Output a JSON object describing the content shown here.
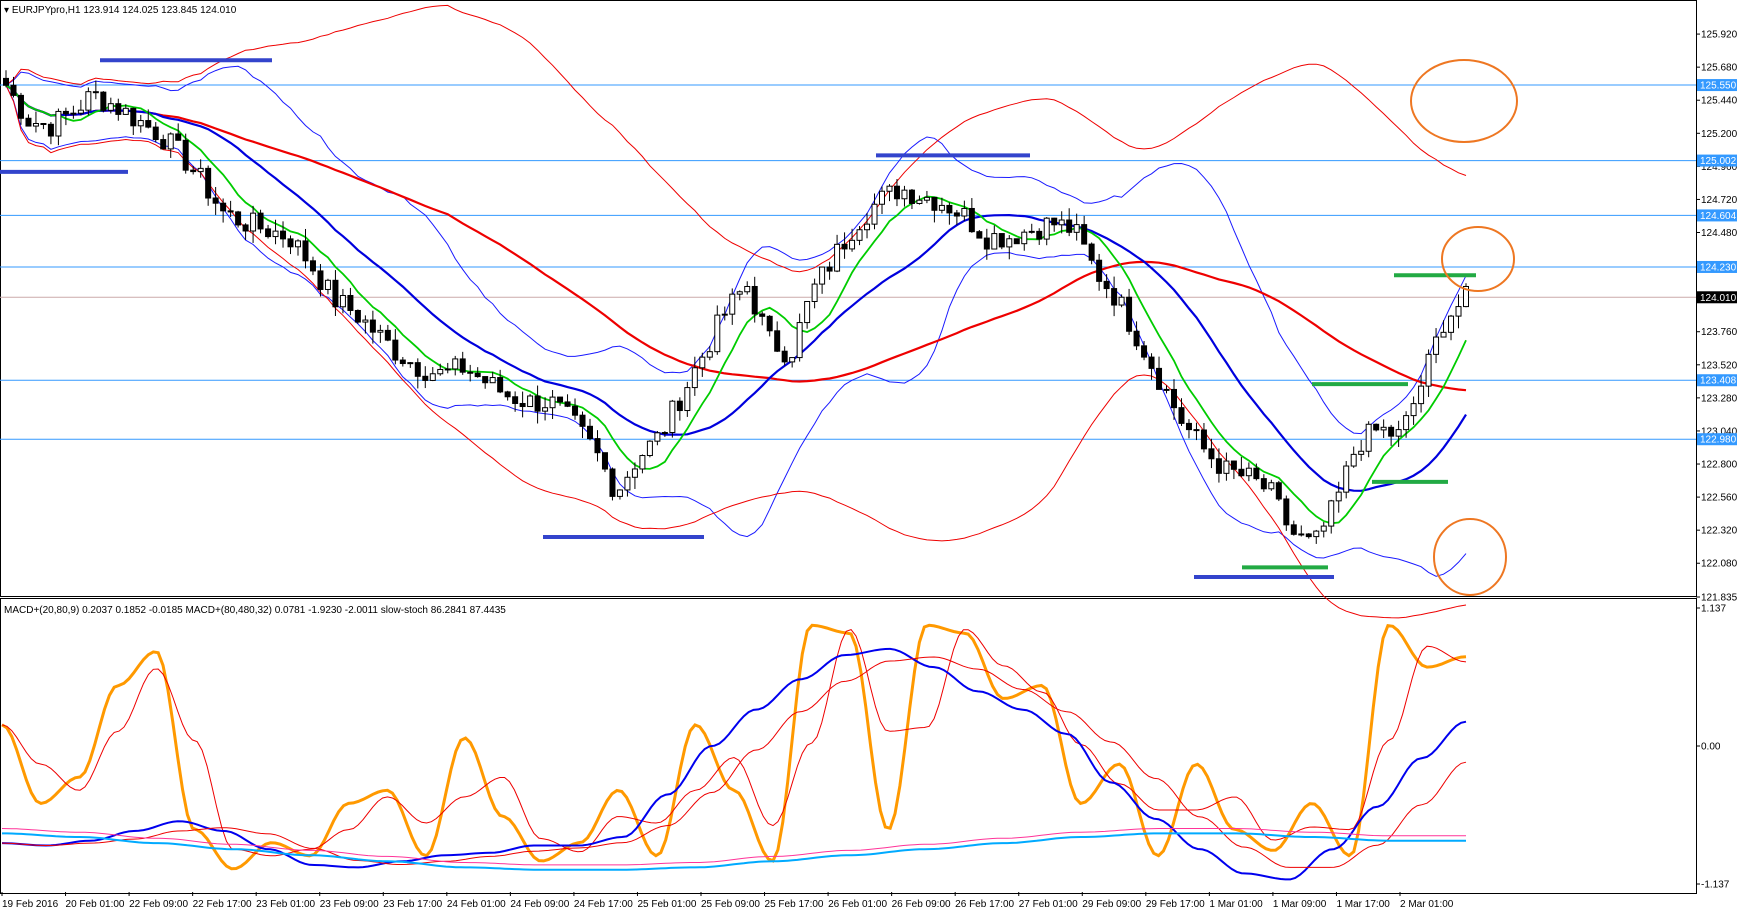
{
  "header": {
    "symbol_label": "EURJPYpro,H1",
    "ohlc": "123.914 124.025 123.845 124.010",
    "indicators": "MACD+(20,80,9) 0.2037 0.1852 -0.0185  MACD+(80,480,32) 0.0781 -1.9230 -2.0011  slow-stoch 86.2841 87.4435"
  },
  "colors": {
    "bull_body": "#ffffff",
    "bear_body": "#000000",
    "bb": "#1a1aff",
    "ma_green": "#00cc00",
    "ma_blue": "#0000dd",
    "ma_red": "#ee0000",
    "hline": "#3399ff",
    "annot_blue": "#3344cc",
    "annot_green": "#22aa44",
    "circle": "#ee7722",
    "stoch": "#ff9900",
    "macd_fast": "#0000ee",
    "macd_slow_cyan": "#00aaff",
    "macd_slow_pink": "#ff3399"
  },
  "chart_data": [
    {
      "type": "candlestick",
      "title": "EURJPYpro,H1",
      "ylim": [
        121.835,
        126.16
      ],
      "y_ticks": [
        "125.920",
        "125.680",
        "125.440",
        "125.200",
        "124.960",
        "124.720",
        "124.480",
        "124.240",
        "124.000",
        "123.760",
        "123.520",
        "123.280",
        "123.040",
        "122.800",
        "122.560",
        "122.320",
        "122.080",
        "121.835"
      ],
      "price_levels": [
        "125.550",
        "125.002",
        "124.604",
        "124.230",
        "123.408",
        "122.980"
      ],
      "current_price": "124.010",
      "x_labels": [
        "19 Feb 2016",
        "20 Feb 01:00",
        "22 Feb 09:00",
        "22 Feb 17:00",
        "23 Feb 01:00",
        "23 Feb 09:00",
        "23 Feb 17:00",
        "24 Feb 01:00",
        "24 Feb 09:00",
        "24 Feb 17:00",
        "25 Feb 01:00",
        "25 Feb 09:00",
        "25 Feb 17:00",
        "26 Feb 01:00",
        "26 Feb 09:00",
        "26 Feb 17:00",
        "27 Feb 01:00",
        "29 Feb 09:00",
        "29 Feb 17:00",
        "1 Mar 01:00",
        "1 Mar 09:00",
        "1 Mar 17:00",
        "2 Mar 01:00"
      ],
      "price_path": [
        125.55,
        125.3,
        125.25,
        125.35,
        125.48,
        125.4,
        125.3,
        125.2,
        125.05,
        124.85,
        124.62,
        124.55,
        124.5,
        124.45,
        124.25,
        124.0,
        123.9,
        123.75,
        123.6,
        123.5,
        123.45,
        123.5,
        123.4,
        123.3,
        123.25,
        123.25,
        123.1,
        122.9,
        122.6,
        122.85,
        123.0,
        123.3,
        123.6,
        123.9,
        124.1,
        123.7,
        123.6,
        124.05,
        124.3,
        124.55,
        124.7,
        124.8,
        124.75,
        124.7,
        124.6,
        124.45,
        124.45,
        124.5,
        124.55,
        124.5,
        124.2,
        124.0,
        123.7,
        123.4,
        123.1,
        122.9,
        122.75,
        122.7,
        122.6,
        122.3,
        122.2,
        122.5,
        122.95,
        123.05,
        123.0,
        123.4,
        123.85,
        124.0
      ]
    },
    {
      "type": "line",
      "title": "MACD+(20,80,9) / MACD+(80,480,32) / slow-stoch",
      "y_ticks": [
        "1.137",
        "0.00",
        "-1.137"
      ],
      "series": [
        {
          "name": "slow-stoch",
          "values": [
            60,
            30,
            40,
            75,
            88,
            20,
            5,
            15,
            10,
            30,
            35,
            10,
            55,
            25,
            8,
            15,
            35,
            10,
            60,
            35,
            8,
            98,
            95,
            20,
            98,
            95,
            70,
            75,
            30,
            45,
            10,
            45,
            20,
            12,
            30,
            10,
            98,
            82,
            86
          ]
        },
        {
          "name": "MACD+(20,80,9)",
          "values": [
            -0.8,
            -0.82,
            -0.78,
            -0.7,
            -0.62,
            -0.7,
            -0.85,
            -0.98,
            -1.0,
            -0.95,
            -0.9,
            -0.88,
            -0.82,
            -0.82,
            -0.75,
            -0.4,
            0.0,
            0.3,
            0.55,
            0.75,
            0.8,
            0.65,
            0.45,
            0.3,
            0.1,
            -0.3,
            -0.6,
            -0.85,
            -1.05,
            -1.1,
            -0.85,
            -0.5,
            -0.1,
            0.2
          ]
        },
        {
          "name": "MACD+(80,480,32)",
          "values": [
            -0.72,
            -0.75,
            -0.8,
            -0.85,
            -0.9,
            -0.95,
            -1.0,
            -1.02,
            -1.02,
            -1.0,
            -0.95,
            -0.9,
            -0.85,
            -0.8,
            -0.75,
            -0.72,
            -0.72,
            -0.75,
            -0.78,
            -0.78
          ]
        }
      ]
    }
  ]
}
